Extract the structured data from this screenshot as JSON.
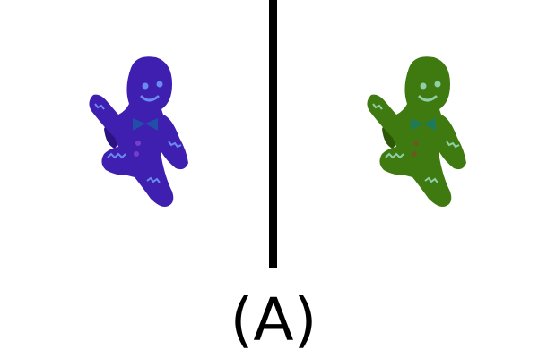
{
  "panels": [
    {
      "figure_icon": "gingerbread-man-icon",
      "body_color": "#3f1fb0",
      "shade_color": "#2a1380",
      "detail_color": "#6a8cf0",
      "bow_color": "#1f4fa8",
      "button_color": "#7a3cc8"
    },
    {
      "figure_icon": "gingerbread-man-icon",
      "body_color": "#3f7a10",
      "shade_color": "#2c5808",
      "detail_color": "#8fd0a8",
      "bow_color": "#1e7a58",
      "button_color": "#6a5a20"
    }
  ],
  "caption": "(A)"
}
